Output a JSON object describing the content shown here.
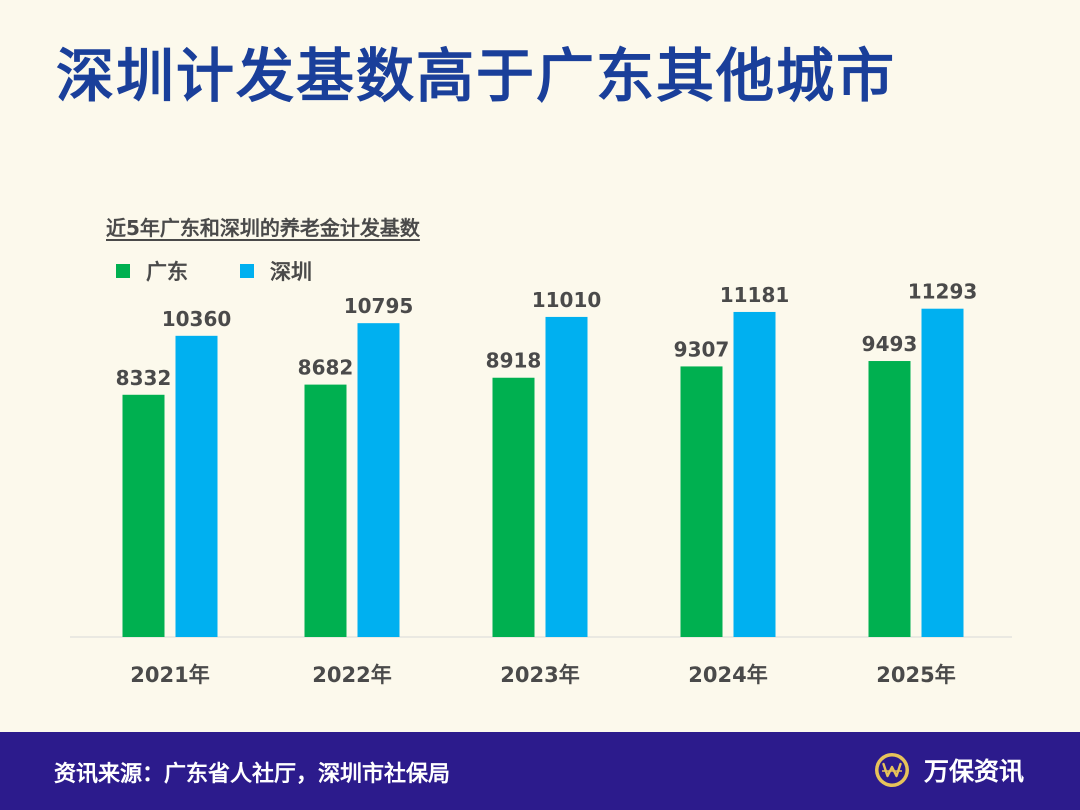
{
  "header": {
    "title": "深圳计发基数高于广东其他城市"
  },
  "chart_data": {
    "type": "bar",
    "title": "近5年广东和深圳的养老金计发基数",
    "categories": [
      "2021年",
      "2022年",
      "2023年",
      "2024年",
      "2025年"
    ],
    "series": [
      {
        "name": "广东",
        "color": "#00b050",
        "values": [
          8332,
          8682,
          8918,
          9307,
          9493
        ]
      },
      {
        "name": "深圳",
        "color": "#00b0f0",
        "values": [
          10360,
          10795,
          11010,
          11181,
          11293
        ]
      }
    ],
    "xlabel": "",
    "ylabel": "",
    "ylim": [
      0,
      14000
    ],
    "grid": false,
    "legend": "top-left"
  },
  "footer": {
    "source": "资讯来源：广东省人社厅，深圳市社保局",
    "brand": "万保资讯",
    "brand_icon": "w-logo-icon"
  },
  "colors": {
    "background": "#fcf9ec",
    "title": "#1a3f9a",
    "footer_bg": "#2c1b8c",
    "label_text": "#4a4a4a",
    "logo_gold": "#e7c35a"
  }
}
